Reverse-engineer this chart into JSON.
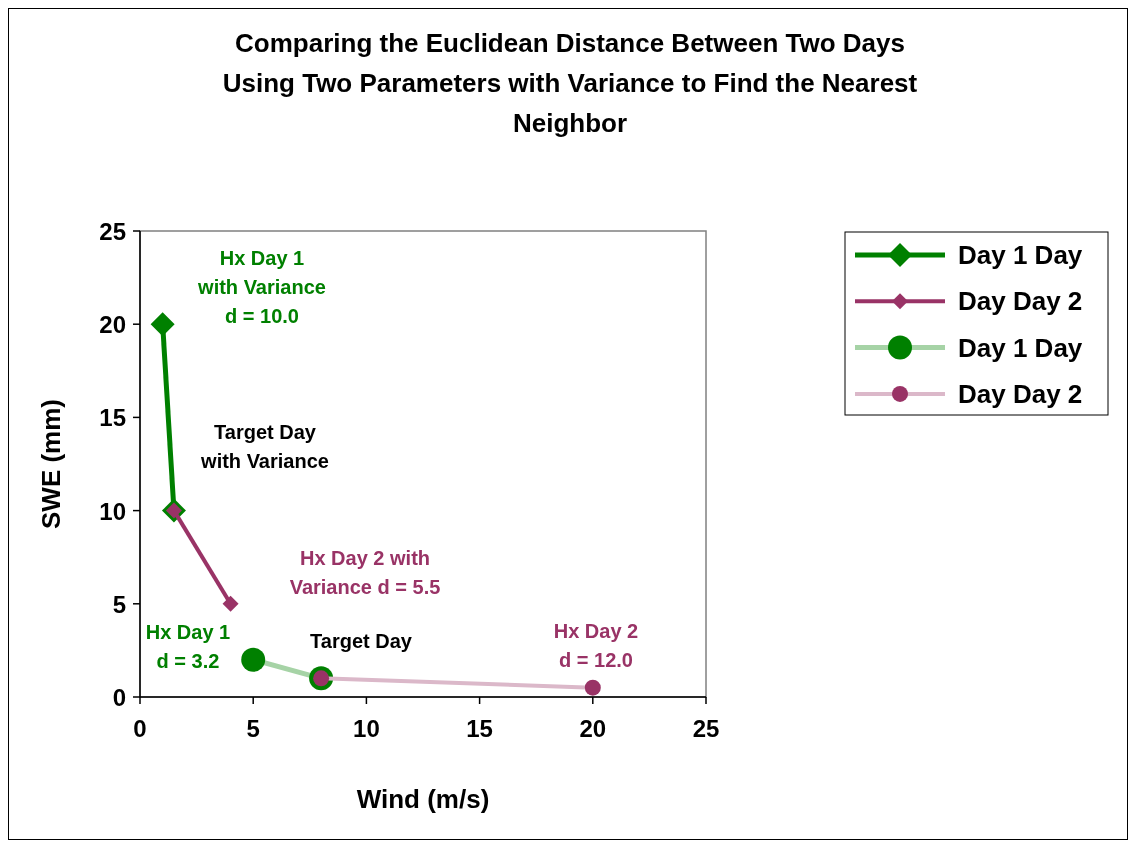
{
  "chart_data": {
    "type": "line",
    "title": "Comparing the Euclidean Distance Between Two Days\nUsing Two Parameters with Variance to Find the Nearest\nNeighbor",
    "xlabel": "Wind (m/s)",
    "ylabel": "SWE (mm)",
    "xlim": [
      0,
      25
    ],
    "ylim": [
      0,
      25
    ],
    "xticks": [
      0,
      5,
      10,
      15,
      20,
      25
    ],
    "yticks": [
      0,
      5,
      10,
      15,
      20,
      25
    ],
    "legend": "top right",
    "series": [
      {
        "name": "Day 1 Day",
        "color": "#008000",
        "x": [
          1,
          1.5
        ],
        "values": [
          20,
          10
        ],
        "marker": "diamond"
      },
      {
        "name": "Day Day 2",
        "color": "#993366",
        "x": [
          1.5,
          4
        ],
        "values": [
          10,
          5
        ],
        "marker": "diamond"
      },
      {
        "name": "Day 1 Day",
        "color": "#008000",
        "x": [
          5,
          8
        ],
        "values": [
          2,
          1
        ],
        "marker": "circle"
      },
      {
        "name": "Day Day 2",
        "color": "#993366",
        "x": [
          8,
          20
        ],
        "values": [
          1,
          0.5
        ],
        "marker": "circle"
      }
    ],
    "annotations": [
      "Hx Day 1\nwith Variance\nd = 10.0",
      "Target Day\nwith Variance",
      "Hx Day 2 with\nVariance d = 5.5",
      "Hx Day 1\nd = 3.2",
      "Target Day",
      "Hx Day 2\nd = 12.0"
    ]
  }
}
